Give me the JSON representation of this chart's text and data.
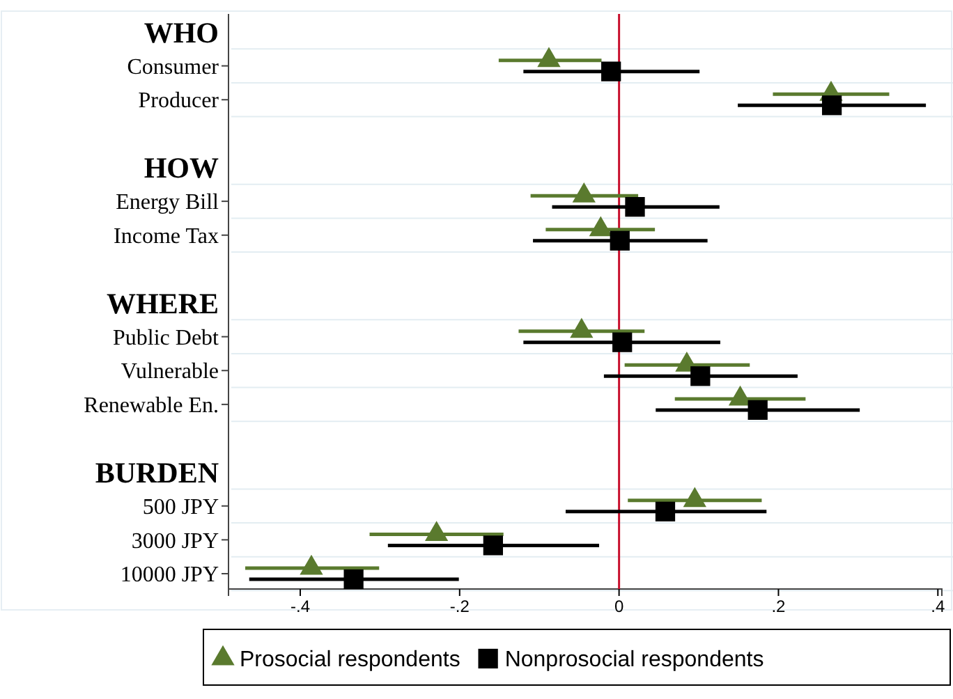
{
  "chart_data": {
    "type": "scatter",
    "orientation": "horizontal",
    "categories": [
      "WHO",
      "Consumer",
      "Producer",
      null,
      "HOW",
      "Energy Bill",
      "Income Tax",
      null,
      "WHERE",
      "Public Debt",
      "Vulnerable",
      "Renewable En.",
      null,
      "BURDEN",
      "500 JPY",
      "3000 JPY",
      "10000 JPY"
    ],
    "series": [
      {
        "name": "Prosocial respondents",
        "color": "#5a7a2e",
        "marker": "triangle",
        "values": [
          null,
          -0.088,
          0.266,
          null,
          null,
          -0.044,
          -0.023,
          null,
          null,
          -0.047,
          0.085,
          0.152,
          null,
          null,
          0.095,
          -0.229,
          -0.386
        ],
        "errors": [
          null,
          [
            -0.151,
            -0.022
          ],
          [
            0.193,
            0.339
          ],
          null,
          null,
          [
            -0.111,
            0.024
          ],
          [
            -0.092,
            0.045
          ],
          null,
          null,
          [
            -0.126,
            0.032
          ],
          [
            0.007,
            0.164
          ],
          [
            0.07,
            0.234
          ],
          null,
          null,
          [
            0.011,
            0.179
          ],
          [
            -0.313,
            -0.145
          ],
          [
            -0.469,
            -0.301
          ]
        ]
      },
      {
        "name": "Nonprosocial respondents",
        "color": "#000000",
        "marker": "square",
        "values": [
          null,
          -0.01,
          0.267,
          null,
          null,
          0.02,
          0.001,
          null,
          null,
          0.004,
          0.102,
          0.174,
          null,
          null,
          0.058,
          -0.158,
          -0.333
        ],
        "errors": [
          null,
          [
            -0.12,
            0.101
          ],
          [
            0.149,
            0.385
          ],
          null,
          null,
          [
            -0.084,
            0.126
          ],
          [
            -0.108,
            0.111
          ],
          null,
          null,
          [
            -0.12,
            0.127
          ],
          [
            -0.019,
            0.224
          ],
          [
            0.046,
            0.302
          ],
          null,
          null,
          [
            -0.067,
            0.185
          ],
          [
            -0.29,
            -0.025
          ],
          [
            -0.464,
            -0.201
          ]
        ]
      }
    ],
    "xlim": [
      -0.49,
      0.405
    ],
    "xticks": [
      {
        "value": -0.4,
        "label": "-.4"
      },
      {
        "value": -0.2,
        "label": "-.2"
      },
      0,
      {
        "value": 0.2,
        "label": ".2"
      },
      {
        "value": 0.4,
        "label": ".4"
      }
    ],
    "ref_lines": [
      {
        "axis": "x",
        "value": 0,
        "color": "#c8102e"
      }
    ],
    "grid": "y",
    "legend": "bottom"
  }
}
